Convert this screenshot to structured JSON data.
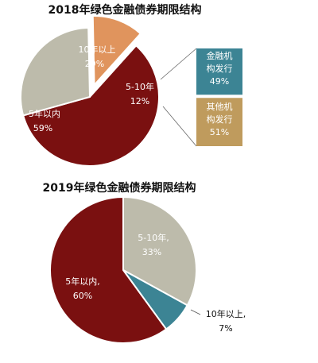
{
  "chart_data": [
    {
      "type": "pie",
      "title": "2018年绿色金融债券期限结构",
      "categories": [
        "5年以内",
        "10年以上",
        "5-10年"
      ],
      "values": [
        59,
        29,
        12
      ],
      "value_labels": [
        "59%",
        "29%",
        "12%"
      ],
      "colors": [
        "#7a1010",
        "#bdbbab",
        "#e0945d"
      ],
      "breakdown": {
        "of": "5-10年",
        "categories": [
          "金融机构发行",
          "其他机构发行"
        ],
        "category_lines": [
          [
            "金融机",
            "构发行"
          ],
          [
            "其他机",
            "构发行"
          ]
        ],
        "values": [
          49,
          51
        ],
        "value_labels": [
          "49%",
          "51%"
        ],
        "colors": [
          "#3c8494",
          "#bf9b5d"
        ]
      }
    },
    {
      "type": "pie",
      "title": "2019年绿色金融债券期限结构",
      "categories": [
        "5-10年",
        "10年以上",
        "5年以内"
      ],
      "values": [
        33,
        7,
        60
      ],
      "value_labels": [
        "33%",
        "7%",
        "60%"
      ],
      "label_text": [
        "5-10年,",
        "10年以上,",
        "5年以内,"
      ],
      "colors": [
        "#bdbbab",
        "#3c8494",
        "#7a1010"
      ]
    }
  ]
}
